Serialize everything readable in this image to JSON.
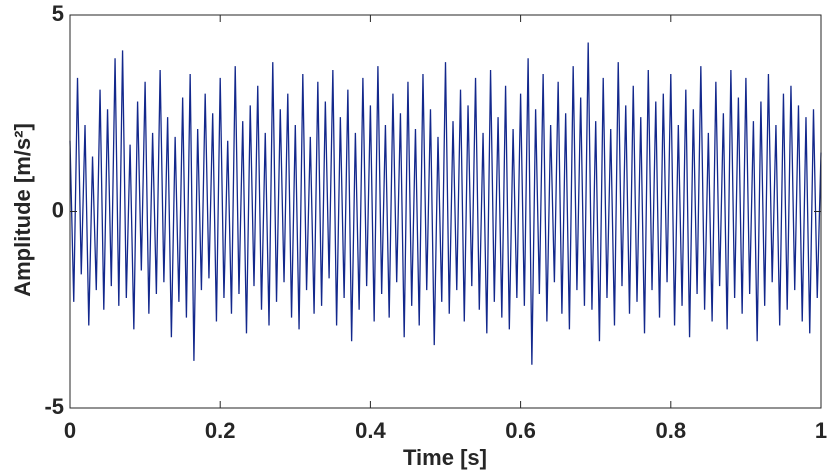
{
  "chart_data": {
    "type": "line",
    "x_label": "Time [s]",
    "y_label": "Amplitude [m/s²]",
    "color": "#13288c",
    "xlim": [
      0,
      1
    ],
    "xticks": [
      0,
      0.2,
      0.4,
      0.6,
      0.8,
      1
    ],
    "ylim": [
      -5,
      5
    ],
    "yticks": [
      -5,
      0,
      5
    ],
    "x": [
      0,
      0.005,
      0.01,
      0.015,
      0.02,
      0.025,
      0.03,
      0.035,
      0.04,
      0.045,
      0.05,
      0.055,
      0.06,
      0.065,
      0.07,
      0.075,
      0.08,
      0.085,
      0.09,
      0.095,
      0.1,
      0.105,
      0.11,
      0.115,
      0.12,
      0.125,
      0.13,
      0.135,
      0.14,
      0.145,
      0.15,
      0.155,
      0.16,
      0.165,
      0.17,
      0.175,
      0.18,
      0.185,
      0.19,
      0.195,
      0.2,
      0.205,
      0.21,
      0.215,
      0.22,
      0.225,
      0.23,
      0.235,
      0.24,
      0.245,
      0.25,
      0.255,
      0.26,
      0.265,
      0.27,
      0.275,
      0.28,
      0.285,
      0.29,
      0.295,
      0.3,
      0.305,
      0.31,
      0.315,
      0.32,
      0.325,
      0.33,
      0.335,
      0.34,
      0.345,
      0.35,
      0.355,
      0.36,
      0.365,
      0.37,
      0.375,
      0.38,
      0.385,
      0.39,
      0.395,
      0.4,
      0.405,
      0.41,
      0.415,
      0.42,
      0.425,
      0.43,
      0.435,
      0.44,
      0.445,
      0.45,
      0.455,
      0.46,
      0.465,
      0.47,
      0.475,
      0.48,
      0.485,
      0.49,
      0.495,
      0.5,
      0.505,
      0.51,
      0.515,
      0.52,
      0.525,
      0.53,
      0.535,
      0.54,
      0.545,
      0.55,
      0.555,
      0.56,
      0.565,
      0.57,
      0.575,
      0.58,
      0.585,
      0.59,
      0.595,
      0.6,
      0.605,
      0.61,
      0.615,
      0.62,
      0.625,
      0.63,
      0.635,
      0.64,
      0.645,
      0.65,
      0.655,
      0.66,
      0.665,
      0.67,
      0.675,
      0.68,
      0.685,
      0.69,
      0.695,
      0.7,
      0.705,
      0.71,
      0.715,
      0.72,
      0.725,
      0.73,
      0.735,
      0.74,
      0.745,
      0.75,
      0.755,
      0.76,
      0.765,
      0.77,
      0.775,
      0.78,
      0.785,
      0.79,
      0.795,
      0.8,
      0.805,
      0.81,
      0.815,
      0.82,
      0.825,
      0.83,
      0.835,
      0.84,
      0.845,
      0.85,
      0.855,
      0.86,
      0.865,
      0.87,
      0.875,
      0.88,
      0.885,
      0.89,
      0.895,
      0.9,
      0.905,
      0.91,
      0.915,
      0.92,
      0.925,
      0.93,
      0.935,
      0.94,
      0.945,
      0.95,
      0.955,
      0.96,
      0.965,
      0.97,
      0.975,
      0.98,
      0.985,
      0.99,
      0.995,
      1
    ],
    "values": [
      1.8,
      -2.3,
      3.4,
      -1.6,
      2.2,
      -2.9,
      1.4,
      -2.0,
      3.1,
      -2.5,
      2.6,
      -1.9,
      3.9,
      -2.4,
      4.1,
      -2.2,
      1.7,
      -3.0,
      2.8,
      -1.5,
      3.3,
      -2.6,
      2.0,
      -2.1,
      3.6,
      -1.8,
      2.4,
      -3.2,
      1.9,
      -2.3,
      2.9,
      -2.7,
      3.5,
      -3.8,
      2.1,
      -2.0,
      3.0,
      -1.7,
      2.5,
      -2.8,
      3.4,
      -2.2,
      1.8,
      -2.6,
      3.7,
      -2.1,
      2.3,
      -3.1,
      2.7,
      -1.9,
      3.2,
      -2.5,
      2.0,
      -2.9,
      3.8,
      -2.3,
      2.6,
      -1.8,
      3.0,
      -2.7,
      2.2,
      -3.0,
      3.5,
      -2.0,
      1.9,
      -2.6,
      3.3,
      -2.4,
      2.8,
      -1.7,
      3.6,
      -2.9,
      2.4,
      -2.2,
      3.1,
      -3.3,
      2.0,
      -2.5,
      3.4,
      -1.9,
      2.7,
      -2.8,
      3.7,
      -2.1,
      2.2,
      -2.7,
      3.0,
      -1.8,
      2.5,
      -3.2,
      3.3,
      -2.4,
      2.1,
      -2.9,
      3.5,
      -2.0,
      2.6,
      -3.4,
      1.9,
      -2.3,
      3.8,
      -2.6,
      2.3,
      -2.0,
      3.1,
      -2.8,
      2.7,
      -1.9,
      3.4,
      -2.5,
      2.0,
      -3.1,
      3.6,
      -2.3,
      2.4,
      -2.7,
      3.2,
      -3.0,
      2.1,
      -2.2,
      3.0,
      -2.4,
      3.9,
      -3.9,
      2.6,
      -2.1,
      3.5,
      -2.8,
      2.2,
      -1.8,
      3.3,
      -2.6,
      2.5,
      -3.0,
      3.7,
      -2.0,
      2.9,
      -2.4,
      4.3,
      -2.5,
      2.3,
      -3.3,
      3.4,
      -2.2,
      2.1,
      -2.9,
      3.8,
      -1.9,
      2.7,
      -2.6,
      3.2,
      -2.3,
      2.4,
      -3.1,
      3.6,
      -2.0,
      2.8,
      -2.7,
      3.0,
      -1.8,
      3.5,
      -2.9,
      2.2,
      -2.4,
      3.1,
      -3.2,
      2.6,
      -2.1,
      3.7,
      -2.5,
      2.0,
      -2.8,
      3.3,
      -1.9,
      2.5,
      -3.0,
      3.6,
      -2.2,
      2.9,
      -2.6,
      3.4,
      -2.1,
      2.3,
      -3.3,
      2.8,
      -2.4,
      3.5,
      -1.8,
      2.2,
      -2.9,
      3.0,
      -2.5,
      3.2,
      -2.0,
      2.7,
      -2.8,
      2.4,
      -3.1,
      2.6,
      -2.2,
      1.5
    ]
  }
}
